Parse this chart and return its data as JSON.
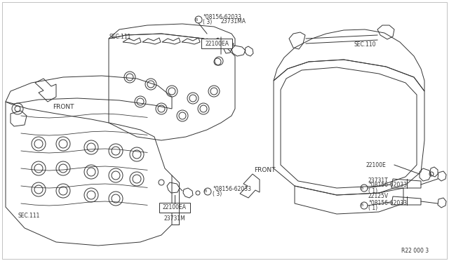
{
  "bg_color": "#ffffff",
  "line_color": "#333333",
  "lw": 0.7,
  "fig_width": 6.4,
  "fig_height": 3.72,
  "dpi": 100,
  "labels": {
    "front_top": "FRONT",
    "front_bot": "FRONT",
    "sec111_center": "SEC.111",
    "sec111_left": "SEC.111",
    "sec110": "SEC.110",
    "b_bolt_top": "°08156-62033",
    "b_bolt_top_count": "( 3)",
    "part_23731MA": "23731MA",
    "part_22100EA_top": "22100EA",
    "part_22100EA_bot": "22100EA",
    "part_22100E": "22100E",
    "part_23731T": "23731T",
    "part_23731M": "23731M",
    "part_22125V": "22125V",
    "b_bolt_mid": "°08156-62033",
    "b_bolt_mid_count": "( 3)",
    "b_bolt_r1": "°08156-62033",
    "b_bolt_r1_count": "( 1)",
    "b_bolt_r2": "°08156-62033",
    "b_bolt_r2_count": "( 1)",
    "ref_num": "R22 000 3"
  }
}
